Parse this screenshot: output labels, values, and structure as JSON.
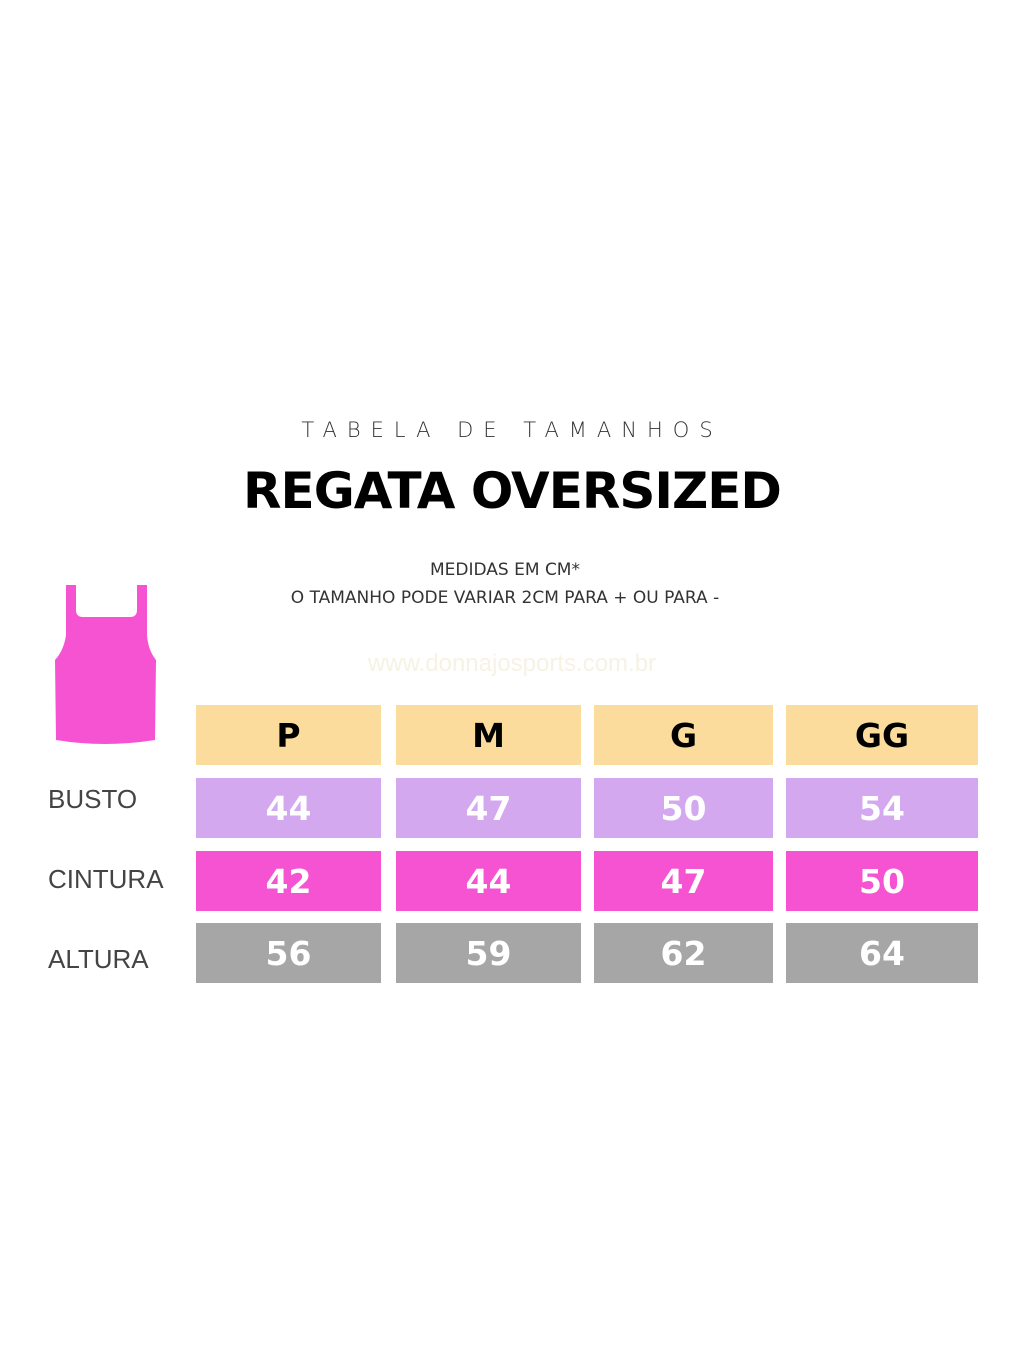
{
  "subtitle": "TABELA DE TAMANHOS",
  "title": "REGATA OVERSIZED",
  "notes": [
    "MEDIDAS EM CM*",
    "O TAMANHO PODE VARIAR 2CM PARA + OU PARA -"
  ],
  "watermark": "www.donnajosports.com.br",
  "icon": "tank-top-icon",
  "colors": {
    "header": "#fbdc9d",
    "busto": "#d3a8ef",
    "cintura": "#f553d2",
    "altura": "#a6a6a6",
    "garment": "#f553d2"
  },
  "table": {
    "sizes": [
      "P",
      "M",
      "G",
      "GG"
    ],
    "rows": [
      {
        "label": "BUSTO",
        "values": [
          "44",
          "47",
          "50",
          "54"
        ]
      },
      {
        "label": "CINTURA",
        "values": [
          "42",
          "44",
          "47",
          "50"
        ]
      },
      {
        "label": "ALTURA",
        "values": [
          "56",
          "59",
          "62",
          "64"
        ]
      }
    ]
  }
}
